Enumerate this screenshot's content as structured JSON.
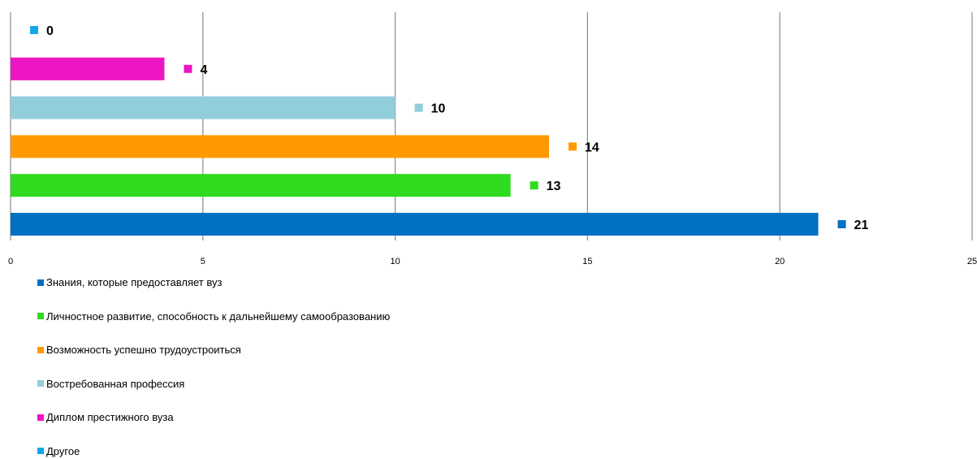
{
  "chart_data": {
    "type": "bar",
    "orientation": "horizontal",
    "xlim": [
      0,
      25
    ],
    "x_ticks": [
      0,
      5,
      10,
      15,
      20,
      25
    ],
    "grid": "vertical",
    "legend_position": "bottom",
    "series": [
      {
        "name": "Знания, которые предоставляет вуз",
        "value": 21,
        "color": "#0070C0"
      },
      {
        "name": "Личностное развитие, способность к дальнейшему самообразованию",
        "value": 13,
        "color": "#2EDB1F"
      },
      {
        "name": "Возможность успешно трудоустроиться",
        "value": 14,
        "color": "#FF9900"
      },
      {
        "name": "Востребованная профессия",
        "value": 10,
        "color": "#92CDDC"
      },
      {
        "name": "Диплом престижного вуза",
        "value": 4,
        "color": "#EE16C4"
      },
      {
        "name": "Другое",
        "value": 0,
        "color": "#11A9E5"
      }
    ]
  }
}
